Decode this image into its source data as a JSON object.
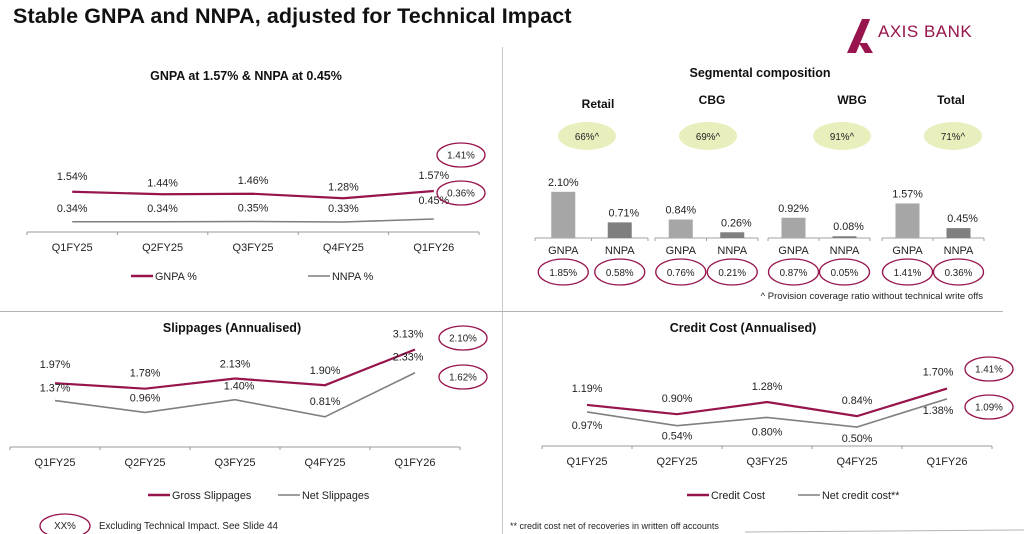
{
  "header": {
    "title": "Stable GNPA and NNPA, adjusted for Technical Impact",
    "brand": "AXIS BANK",
    "brand_color": "#97144d"
  },
  "colors": {
    "primary_line": "#97144d",
    "secondary_line": "#7f7f7f",
    "gnpa_bar": "#a6a6a6",
    "nnpa_bar": "#7f7f7f",
    "pcr_ellipse": "#e9eebd",
    "highlight_ring": "#97144d"
  },
  "chart_data": [
    {
      "id": "gnpa-nnpa",
      "type": "line",
      "title": "GNPA at 1.57% & NNPA at 0.45%",
      "categories": [
        "Q1FY25",
        "Q2FY25",
        "Q3FY25",
        "Q4FY25",
        "Q1FY26"
      ],
      "series": [
        {
          "name": "GNPA %",
          "values": [
            1.54,
            1.44,
            1.46,
            1.28,
            1.57
          ],
          "labels": [
            "1.54%",
            "1.44%",
            "1.46%",
            "1.28%",
            "1.57%"
          ],
          "excl_technical": "1.41%"
        },
        {
          "name": "NNPA %",
          "values": [
            0.34,
            0.34,
            0.35,
            0.33,
            0.45
          ],
          "labels": [
            "0.34%",
            "0.34%",
            "0.35%",
            "0.33%",
            "0.45%"
          ],
          "excl_technical": "0.36%"
        }
      ],
      "legend": "bottom",
      "grid": false,
      "xlabel": "",
      "ylabel": ""
    },
    {
      "id": "segmental",
      "type": "bar",
      "title": "Segmental composition",
      "categories": [
        "GNPA",
        "NNPA"
      ],
      "groups": [
        {
          "name": "Retail",
          "pcr": "66%^",
          "values": [
            2.1,
            0.71
          ],
          "labels": [
            "2.10%",
            "0.71%"
          ],
          "excl_technical": [
            "1.85%",
            "0.58%"
          ]
        },
        {
          "name": "CBG",
          "pcr": "69%^",
          "values": [
            0.84,
            0.26
          ],
          "labels": [
            "0.84%",
            "0.26%"
          ],
          "excl_technical": [
            "0.76%",
            "0.21%"
          ]
        },
        {
          "name": "WBG",
          "pcr": "91%^",
          "values": [
            0.92,
            0.08
          ],
          "labels": [
            "0.92%",
            "0.08%"
          ],
          "excl_technical": [
            "0.87%",
            "0.05%"
          ]
        },
        {
          "name": "Total",
          "pcr": "71%^",
          "values": [
            1.57,
            0.45
          ],
          "labels": [
            "1.57%",
            "0.45%"
          ],
          "excl_technical": [
            "1.41%",
            "0.36%"
          ]
        }
      ],
      "footnote": "^ Provision coverage ratio without technical write offs"
    },
    {
      "id": "slippages",
      "type": "line",
      "title": "Slippages (Annualised)",
      "categories": [
        "Q1FY25",
        "Q2FY25",
        "Q3FY25",
        "Q4FY25",
        "Q1FY26"
      ],
      "series": [
        {
          "name": "Gross Slippages",
          "values": [
            1.97,
            1.78,
            2.13,
            1.9,
            3.13
          ],
          "labels": [
            "1.97%",
            "1.78%",
            "2.13%",
            "1.90%",
            "3.13%"
          ],
          "excl_technical": "2.10%"
        },
        {
          "name": "Net Slippages",
          "values": [
            1.37,
            0.96,
            1.4,
            0.81,
            2.33
          ],
          "labels": [
            "1.37%",
            "0.96%",
            "1.40%",
            "0.81%",
            "2.33%"
          ],
          "excl_technical": "1.62%"
        }
      ],
      "legend": "bottom",
      "grid": false,
      "xlabel": "",
      "ylabel": ""
    },
    {
      "id": "credit-cost",
      "type": "line",
      "title": "Credit Cost (Annualised)",
      "categories": [
        "Q1FY25",
        "Q2FY25",
        "Q3FY25",
        "Q4FY25",
        "Q1FY26"
      ],
      "series": [
        {
          "name": "Credit Cost",
          "values": [
            1.19,
            0.9,
            1.28,
            0.84,
            1.7
          ],
          "labels": [
            "1.19%",
            "0.90%",
            "1.28%",
            "0.84%",
            "1.70%"
          ],
          "excl_technical": "1.41%"
        },
        {
          "name": "Net credit cost**",
          "values": [
            0.97,
            0.54,
            0.8,
            0.5,
            1.38
          ],
          "labels": [
            "0.97%",
            "0.54%",
            "0.80%",
            "0.50%",
            "1.38%"
          ],
          "excl_technical": "1.09%"
        }
      ],
      "legend": "bottom",
      "grid": false,
      "xlabel": "",
      "ylabel": "",
      "footnote": "** credit cost net of recoveries in written off accounts"
    }
  ],
  "key": {
    "symbol": "XX%",
    "text": "Excluding Technical Impact. See Slide 44"
  }
}
